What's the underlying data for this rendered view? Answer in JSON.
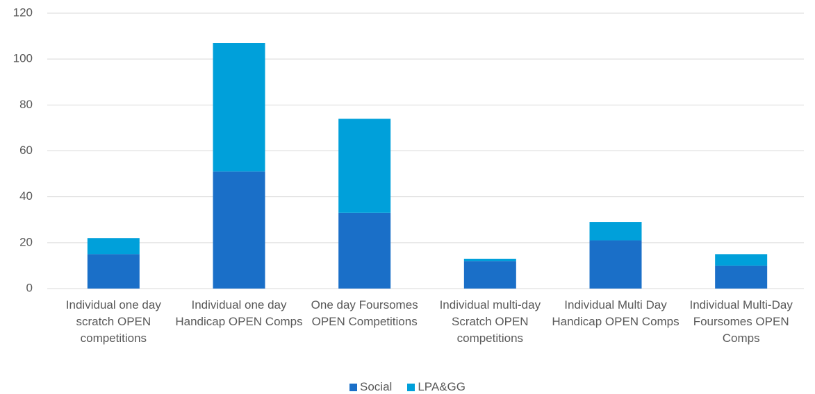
{
  "chart_data": {
    "type": "stacked_bar",
    "categories": [
      "Individual  one day scratch OPEN competitions",
      "Individual one day Handicap OPEN Comps",
      "One day Foursomes OPEN Competitions",
      "Individual multi-day Scratch OPEN competitions",
      "Individual Multi Day Handicap OPEN Comps",
      "Individual Multi-Day Foursomes OPEN Comps"
    ],
    "series": [
      {
        "name": "Social",
        "color": "#1a6fc8",
        "values": [
          15,
          51,
          33,
          12,
          21,
          10
        ]
      },
      {
        "name": "LPA&GG",
        "color": "#00a0da",
        "values": [
          7,
          56,
          41,
          1,
          8,
          5
        ]
      }
    ],
    "ylim": [
      0,
      120
    ],
    "yticks": [
      0,
      20,
      40,
      60,
      80,
      100,
      120
    ],
    "grid": true,
    "legend": "bottom"
  }
}
